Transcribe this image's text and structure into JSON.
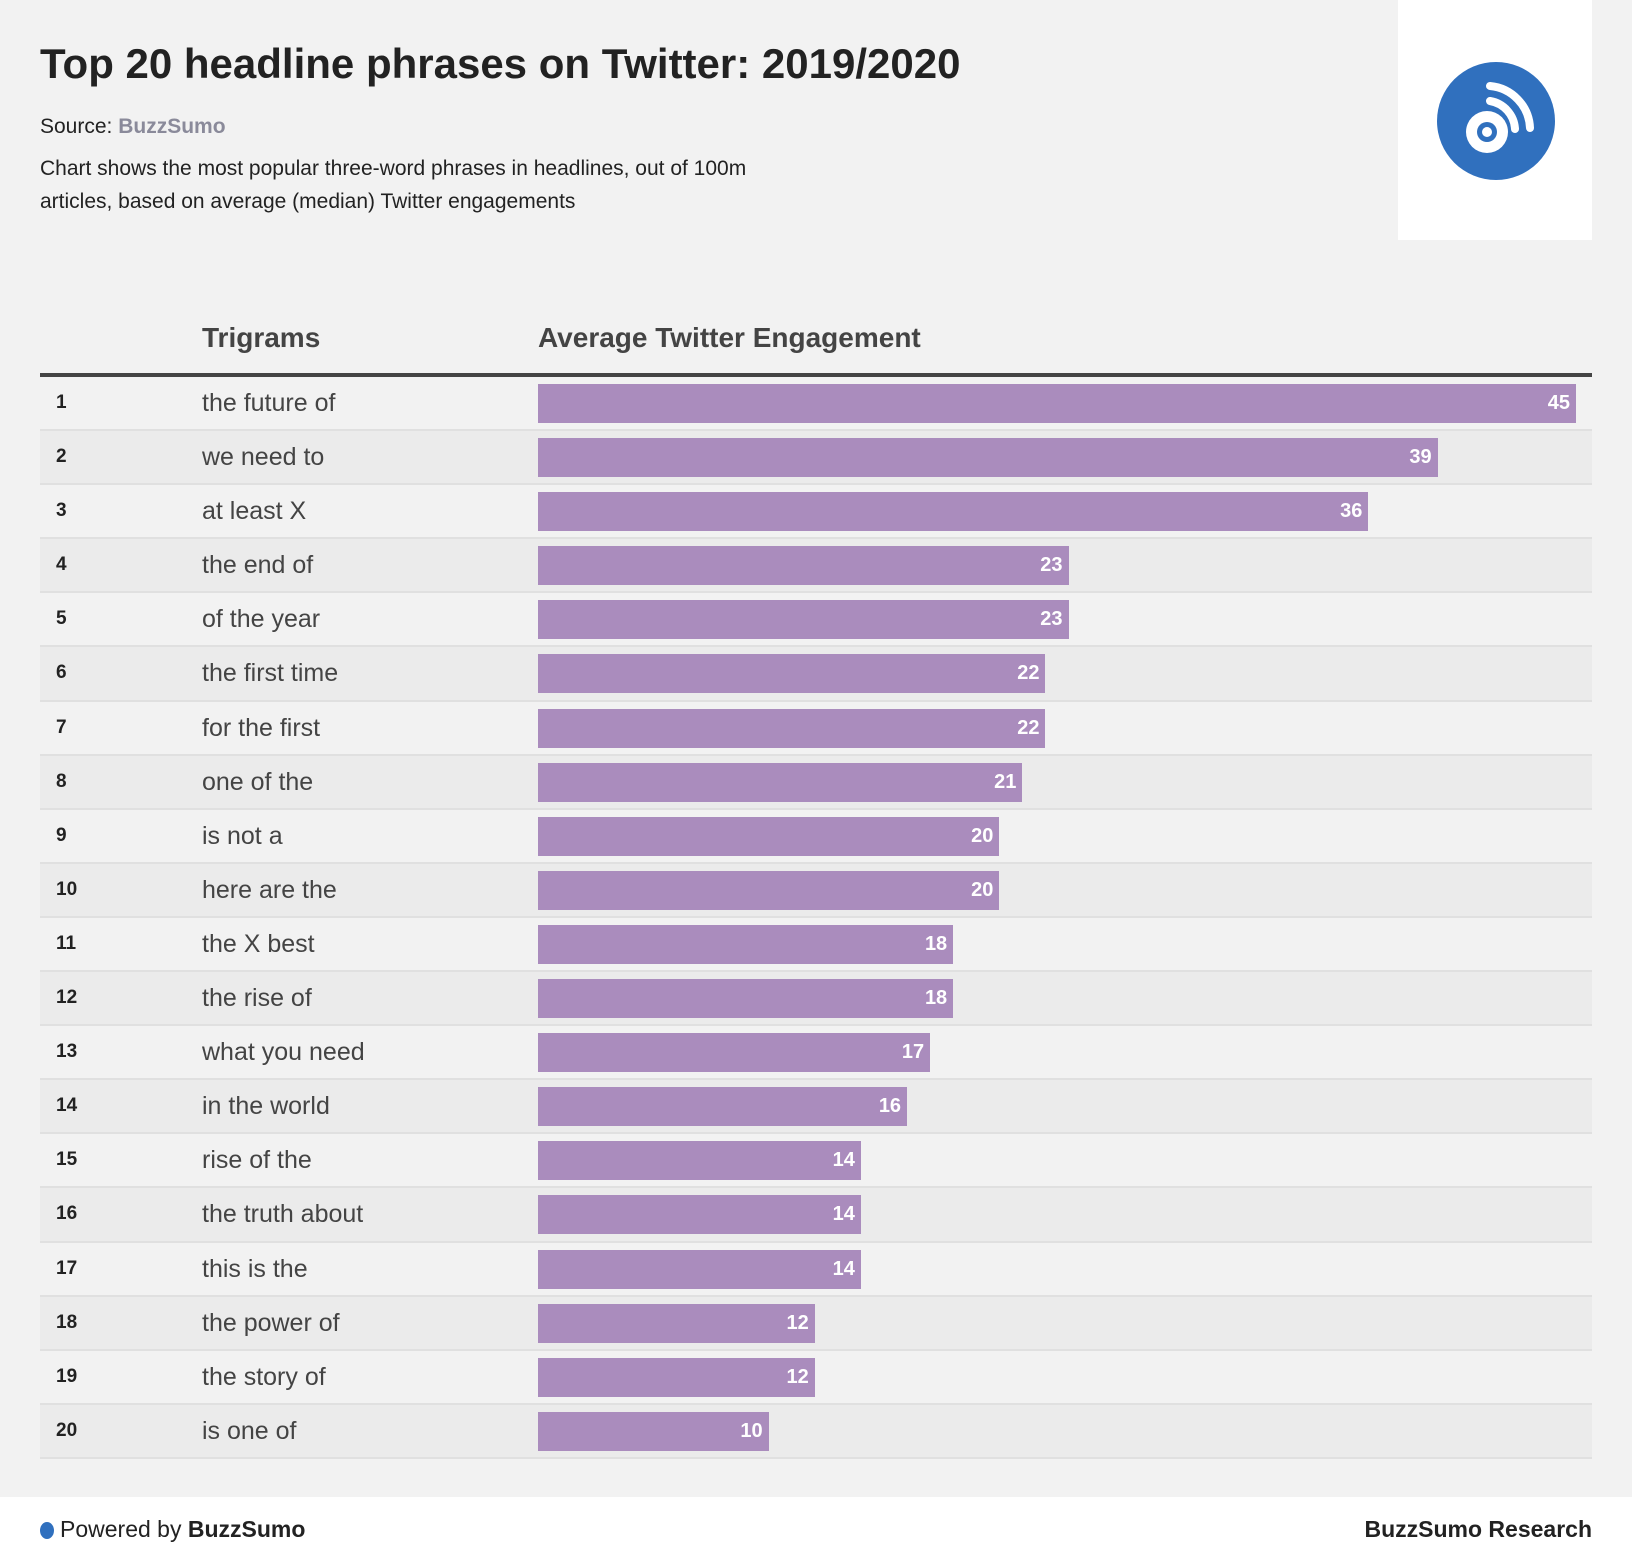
{
  "header": {
    "title": "Top 20 headline phrases on Twitter: 2019/2020",
    "source_label": "Source:",
    "source_name": "BuzzSumo",
    "description": "Chart shows the most popular three-word phrases in headlines, out of 100m articles, based on average (median) Twitter engagements",
    "logo_icon": "rss-disc-icon",
    "logo_color": "#3070be"
  },
  "chart_data": {
    "type": "table",
    "columns": [
      "",
      "Trigrams",
      "Average Twitter Engagement"
    ],
    "bar_color": "#aa8cbd",
    "xlim": [
      0,
      45
    ],
    "rows": [
      {
        "rank": "1",
        "trigram": "the future of",
        "value": 45
      },
      {
        "rank": "2",
        "trigram": "we need to",
        "value": 39
      },
      {
        "rank": "3",
        "trigram": "at least X",
        "value": 36
      },
      {
        "rank": "4",
        "trigram": "the end of",
        "value": 23
      },
      {
        "rank": "5",
        "trigram": "of the year",
        "value": 23
      },
      {
        "rank": "6",
        "trigram": "the first time",
        "value": 22
      },
      {
        "rank": "7",
        "trigram": "for the first",
        "value": 22
      },
      {
        "rank": "8",
        "trigram": "one of the",
        "value": 21
      },
      {
        "rank": "9",
        "trigram": "is not a",
        "value": 20
      },
      {
        "rank": "10",
        "trigram": "here are the",
        "value": 20
      },
      {
        "rank": "11",
        "trigram": "the X best",
        "value": 18
      },
      {
        "rank": "12",
        "trigram": "the rise of",
        "value": 18
      },
      {
        "rank": "13",
        "trigram": "what you need",
        "value": 17
      },
      {
        "rank": "14",
        "trigram": "in the world",
        "value": 16
      },
      {
        "rank": "15",
        "trigram": "rise of the",
        "value": 14
      },
      {
        "rank": "16",
        "trigram": "the truth about",
        "value": 14
      },
      {
        "rank": "17",
        "trigram": "this is the",
        "value": 14
      },
      {
        "rank": "18",
        "trigram": "the power of",
        "value": 12
      },
      {
        "rank": "19",
        "trigram": "the story of",
        "value": 12
      },
      {
        "rank": "20",
        "trigram": "is one of",
        "value": 10
      }
    ]
  },
  "footer": {
    "powered_label": "Powered by",
    "powered_brand": "BuzzSumo",
    "right_label": "BuzzSumo Research"
  }
}
